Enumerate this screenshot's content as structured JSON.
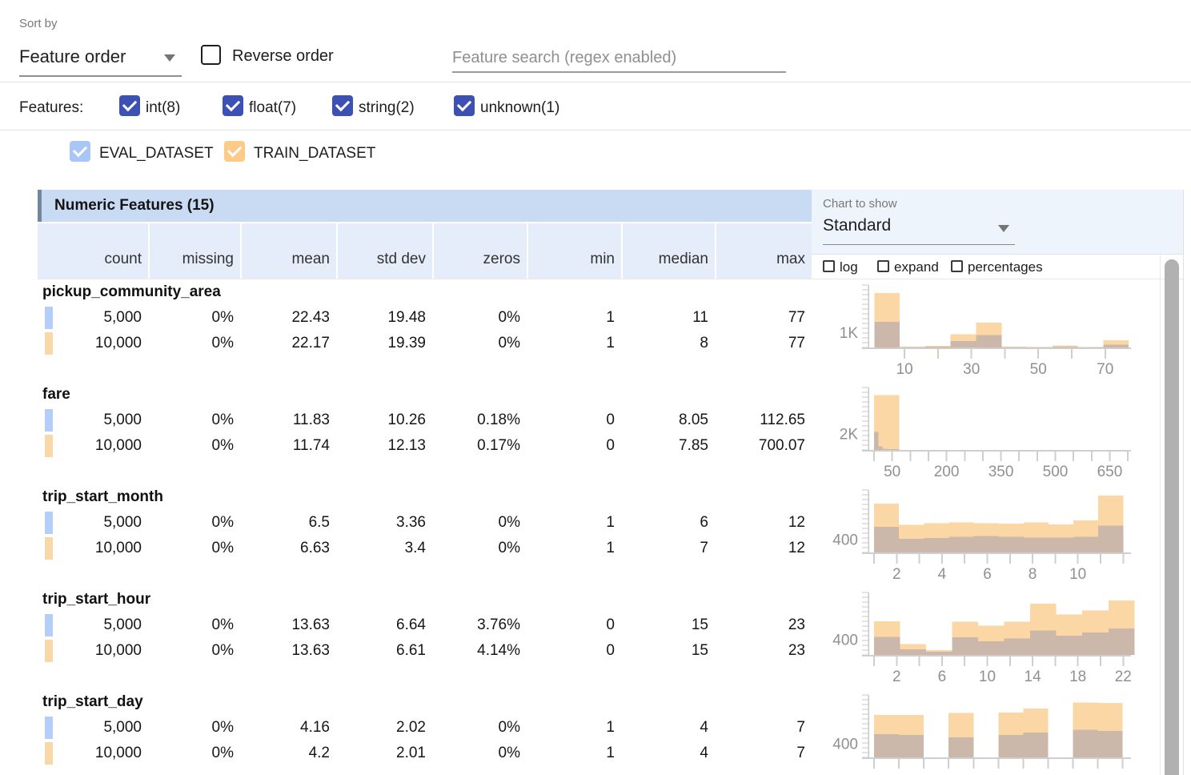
{
  "colors": {
    "accent_checkbox": "#3d51b5",
    "eval_checkbox": "#a8c7f7",
    "train_checkbox": "#fbcb87",
    "eval_marker": "#b5cdf9",
    "train_marker": "#fad7a6",
    "train_bar": "#fad7a4",
    "overlap_bar": "#cbb8aa",
    "header_band": "#c9dbf2",
    "subheader_band": "#e4edf9",
    "header_border": "#70889f",
    "panel_bg": "#eef4fb"
  },
  "toolbar": {
    "sort_by_label": "Sort by",
    "sort_value": "Feature order",
    "reverse_label": "Reverse order",
    "search_placeholder": "Feature search (regex enabled)"
  },
  "features_filter": {
    "label": "Features:",
    "types": [
      {
        "key": "int",
        "label": "int(8)",
        "checked": true
      },
      {
        "key": "float",
        "label": "float(7)",
        "checked": true
      },
      {
        "key": "string",
        "label": "string(2)",
        "checked": true
      },
      {
        "key": "unknown",
        "label": "unknown(1)",
        "checked": true
      }
    ]
  },
  "datasets": [
    {
      "key": "eval",
      "name": "EVAL_DATASET",
      "checked": true,
      "color": "#a8c7f7"
    },
    {
      "key": "train",
      "name": "TRAIN_DATASET",
      "checked": true,
      "color": "#fbcb87"
    }
  ],
  "table": {
    "title": "Numeric Features (15)",
    "columns": [
      "count",
      "missing",
      "mean",
      "std dev",
      "zeros",
      "min",
      "median",
      "max"
    ],
    "chart_controls": {
      "label": "Chart to show",
      "selected": "Standard",
      "options": [
        {
          "key": "log",
          "label": "log",
          "checked": false
        },
        {
          "key": "expand",
          "label": "expand",
          "checked": false
        },
        {
          "key": "percentages",
          "label": "percentages",
          "checked": false
        }
      ]
    },
    "features": [
      {
        "name": "pickup_community_area",
        "rows": [
          {
            "dataset": "EVAL_DATASET",
            "values": [
              "5,000",
              "0%",
              "22.43",
              "19.48",
              "0%",
              "1",
              "11",
              "77"
            ]
          },
          {
            "dataset": "TRAIN_DATASET",
            "values": [
              "10,000",
              "0%",
              "22.17",
              "19.39",
              "0%",
              "1",
              "8",
              "77"
            ]
          }
        ]
      },
      {
        "name": "fare",
        "rows": [
          {
            "dataset": "EVAL_DATASET",
            "values": [
              "5,000",
              "0%",
              "11.83",
              "10.26",
              "0.18%",
              "0",
              "8.05",
              "112.65"
            ]
          },
          {
            "dataset": "TRAIN_DATASET",
            "values": [
              "10,000",
              "0%",
              "11.74",
              "12.13",
              "0.17%",
              "0",
              "7.85",
              "700.07"
            ]
          }
        ]
      },
      {
        "name": "trip_start_month",
        "rows": [
          {
            "dataset": "EVAL_DATASET",
            "values": [
              "5,000",
              "0%",
              "6.5",
              "3.36",
              "0%",
              "1",
              "6",
              "12"
            ]
          },
          {
            "dataset": "TRAIN_DATASET",
            "values": [
              "10,000",
              "0%",
              "6.63",
              "3.4",
              "0%",
              "1",
              "7",
              "12"
            ]
          }
        ]
      },
      {
        "name": "trip_start_hour",
        "rows": [
          {
            "dataset": "EVAL_DATASET",
            "values": [
              "5,000",
              "0%",
              "13.63",
              "6.64",
              "3.76%",
              "0",
              "15",
              "23"
            ]
          },
          {
            "dataset": "TRAIN_DATASET",
            "values": [
              "10,000",
              "0%",
              "13.63",
              "6.61",
              "4.14%",
              "0",
              "15",
              "23"
            ]
          }
        ]
      },
      {
        "name": "trip_start_day",
        "rows": [
          {
            "dataset": "EVAL_DATASET",
            "values": [
              "5,000",
              "0%",
              "4.16",
              "2.02",
              "0%",
              "1",
              "4",
              "7"
            ]
          },
          {
            "dataset": "TRAIN_DATASET",
            "values": [
              "10,000",
              "0%",
              "4.2",
              "2.01",
              "0%",
              "1",
              "4",
              "7"
            ]
          }
        ]
      }
    ]
  },
  "chart_data": [
    {
      "feature": "pickup_community_area",
      "type": "histogram",
      "series": [
        "TRAIN_DATASET",
        "EVAL_DATASET"
      ],
      "x_range": [
        1,
        77
      ],
      "y_ref_label": "1K",
      "y_ref_frac": 0.23,
      "x_ticks": [
        {
          "f": 0.139,
          "label": "10"
        },
        {
          "f": 0.267
        },
        {
          "f": 0.396,
          "label": "30"
        },
        {
          "f": 0.524
        },
        {
          "f": 0.653,
          "label": "50"
        },
        {
          "f": 0.782
        },
        {
          "f": 0.91,
          "label": "70"
        }
      ],
      "train_bars": [
        {
          "x": 0.023,
          "w": 0.0977,
          "h": 0.87,
          "count": 3780
        },
        {
          "x": 0.121,
          "w": 0.0977,
          "h": 0.012,
          "count": 50
        },
        {
          "x": 0.219,
          "w": 0.0977,
          "h": 0.028,
          "count": 120
        },
        {
          "x": 0.316,
          "w": 0.0977,
          "h": 0.21,
          "count": 910
        },
        {
          "x": 0.414,
          "w": 0.0977,
          "h": 0.4,
          "count": 1740
        },
        {
          "x": 0.512,
          "w": 0.0977,
          "h": 0.012,
          "count": 50
        },
        {
          "x": 0.61,
          "w": 0.0977,
          "h": 0.008,
          "count": 35
        },
        {
          "x": 0.707,
          "w": 0.0977,
          "h": 0.035,
          "count": 150
        },
        {
          "x": 0.805,
          "w": 0.0977,
          "h": 0.008,
          "count": 35
        },
        {
          "x": 0.903,
          "w": 0.0977,
          "h": 0.115,
          "count": 500
        }
      ],
      "eval_bars": [
        {
          "x": 0.023,
          "w": 0.0977,
          "h": 0.41,
          "count": 1780
        },
        {
          "x": 0.121,
          "w": 0.0977,
          "h": 0.006,
          "count": 25
        },
        {
          "x": 0.219,
          "w": 0.0977,
          "h": 0.012,
          "count": 50
        },
        {
          "x": 0.316,
          "w": 0.0977,
          "h": 0.105,
          "count": 460
        },
        {
          "x": 0.414,
          "w": 0.0977,
          "h": 0.2,
          "count": 870
        },
        {
          "x": 0.512,
          "w": 0.0977,
          "h": 0.006,
          "count": 25
        },
        {
          "x": 0.61,
          "w": 0.0977,
          "h": 0.004,
          "count": 17
        },
        {
          "x": 0.707,
          "w": 0.0977,
          "h": 0.014,
          "count": 60
        },
        {
          "x": 0.805,
          "w": 0.0977,
          "h": 0.004,
          "count": 17
        },
        {
          "x": 0.903,
          "w": 0.0977,
          "h": 0.048,
          "count": 210
        }
      ]
    },
    {
      "feature": "fare",
      "type": "histogram",
      "series": [
        "TRAIN_DATASET",
        "EVAL_DATASET"
      ],
      "x_range": [
        0,
        700.07
      ],
      "y_ref_label": "2K",
      "y_ref_frac": 0.25,
      "x_ticks": [
        {
          "f": 0.0215
        },
        {
          "f": 0.0912,
          "label": "50"
        },
        {
          "f": 0.1609
        },
        {
          "f": 0.2306
        },
        {
          "f": 0.3003,
          "label": "200"
        },
        {
          "f": 0.37
        },
        {
          "f": 0.4397
        },
        {
          "f": 0.5094,
          "label": "350"
        },
        {
          "f": 0.5791
        },
        {
          "f": 0.6488
        },
        {
          "f": 0.7185,
          "label": "500"
        },
        {
          "f": 0.7882
        },
        {
          "f": 0.8579
        },
        {
          "f": 0.9276,
          "label": "650"
        },
        {
          "f": 0.9973
        }
      ],
      "train_bars": [
        {
          "x": 0.022,
          "w": 0.097,
          "h": 0.88,
          "count": 7040
        }
      ],
      "eval_bars": [
        {
          "x": 0.022,
          "w": 0.0157,
          "h": 0.29,
          "count": 2320
        },
        {
          "x": 0.0377,
          "w": 0.0157,
          "h": 0.055,
          "count": 440
        },
        {
          "x": 0.0534,
          "w": 0.016,
          "h": 0.02,
          "count": 160
        },
        {
          "x": 0.0694,
          "w": 0.0496,
          "h": 0.01,
          "count": 80
        }
      ]
    },
    {
      "feature": "trip_start_month",
      "type": "histogram",
      "series": [
        "TRAIN_DATASET",
        "EVAL_DATASET"
      ],
      "x_range": [
        1,
        12
      ],
      "y_ref_label": "400",
      "y_ref_frac": 0.2,
      "x_ticks": [
        {
          "f": 0.0215
        },
        {
          "f": 0.1086,
          "label": "2"
        },
        {
          "f": 0.1957
        },
        {
          "f": 0.2827,
          "label": "4"
        },
        {
          "f": 0.3698
        },
        {
          "f": 0.4569,
          "label": "6"
        },
        {
          "f": 0.544
        },
        {
          "f": 0.631,
          "label": "8"
        },
        {
          "f": 0.7181
        },
        {
          "f": 0.8052,
          "label": "10"
        },
        {
          "f": 0.8923
        },
        {
          "f": 0.9793
        }
      ],
      "train_bars": [
        {
          "x": 0.0215,
          "w": 0.0958,
          "h": 0.78,
          "count": 1560
        },
        {
          "x": 0.1173,
          "w": 0.0958,
          "h": 0.44,
          "count": 880
        },
        {
          "x": 0.2131,
          "w": 0.0958,
          "h": 0.47,
          "count": 940
        },
        {
          "x": 0.3089,
          "w": 0.0958,
          "h": 0.48,
          "count": 960
        },
        {
          "x": 0.4047,
          "w": 0.0958,
          "h": 0.47,
          "count": 940
        },
        {
          "x": 0.5005,
          "w": 0.0958,
          "h": 0.46,
          "count": 920
        },
        {
          "x": 0.5963,
          "w": 0.0958,
          "h": 0.48,
          "count": 960
        },
        {
          "x": 0.6921,
          "w": 0.0958,
          "h": 0.45,
          "count": 900
        },
        {
          "x": 0.7879,
          "w": 0.0958,
          "h": 0.51,
          "count": 1020
        },
        {
          "x": 0.8837,
          "w": 0.0958,
          "h": 0.91,
          "count": 1820
        }
      ],
      "eval_bars": [
        {
          "x": 0.0215,
          "w": 0.0958,
          "h": 0.41,
          "count": 820
        },
        {
          "x": 0.1173,
          "w": 0.0958,
          "h": 0.22,
          "count": 440
        },
        {
          "x": 0.2131,
          "w": 0.0958,
          "h": 0.23,
          "count": 460
        },
        {
          "x": 0.3089,
          "w": 0.0958,
          "h": 0.25,
          "count": 500
        },
        {
          "x": 0.4047,
          "w": 0.0958,
          "h": 0.26,
          "count": 520
        },
        {
          "x": 0.5005,
          "w": 0.0958,
          "h": 0.25,
          "count": 500
        },
        {
          "x": 0.5963,
          "w": 0.0958,
          "h": 0.24,
          "count": 480
        },
        {
          "x": 0.6921,
          "w": 0.0958,
          "h": 0.24,
          "count": 480
        },
        {
          "x": 0.7879,
          "w": 0.0958,
          "h": 0.25,
          "count": 500
        },
        {
          "x": 0.8837,
          "w": 0.0958,
          "h": 0.43,
          "count": 860
        }
      ]
    },
    {
      "feature": "trip_start_hour",
      "type": "histogram",
      "series": [
        "TRAIN_DATASET",
        "EVAL_DATASET"
      ],
      "x_range": [
        0,
        23
      ],
      "y_ref_label": "400",
      "y_ref_frac": 0.24,
      "x_ticks": [
        {
          "f": 0.0215
        },
        {
          "f": 0.1086,
          "label": "2"
        },
        {
          "f": 0.1957
        },
        {
          "f": 0.2827,
          "label": "6"
        },
        {
          "f": 0.3698
        },
        {
          "f": 0.4569,
          "label": "10"
        },
        {
          "f": 0.544
        },
        {
          "f": 0.631,
          "label": "14"
        },
        {
          "f": 0.7181
        },
        {
          "f": 0.8052,
          "label": "18"
        },
        {
          "f": 0.8923
        },
        {
          "f": 0.9793,
          "label": "22"
        }
      ],
      "train_bars": [
        {
          "x": 0.0215,
          "w": 0.1001,
          "h": 0.54,
          "count": 900
        },
        {
          "x": 0.1216,
          "w": 0.1001,
          "h": 0.17,
          "count": 285
        },
        {
          "x": 0.2217,
          "w": 0.1001,
          "h": 0.08,
          "count": 135
        },
        {
          "x": 0.3218,
          "w": 0.1001,
          "h": 0.53,
          "count": 885
        },
        {
          "x": 0.4219,
          "w": 0.1001,
          "h": 0.47,
          "count": 785
        },
        {
          "x": 0.522,
          "w": 0.1001,
          "h": 0.53,
          "count": 885
        },
        {
          "x": 0.6221,
          "w": 0.1001,
          "h": 0.82,
          "count": 1365
        },
        {
          "x": 0.7222,
          "w": 0.1001,
          "h": 0.65,
          "count": 1085
        },
        {
          "x": 0.8223,
          "w": 0.1001,
          "h": 0.71,
          "count": 1185
        },
        {
          "x": 0.9224,
          "w": 0.1001,
          "h": 0.87,
          "count": 1450
        }
      ],
      "eval_bars": [
        {
          "x": 0.0215,
          "w": 0.1001,
          "h": 0.29,
          "count": 485
        },
        {
          "x": 0.1216,
          "w": 0.1001,
          "h": 0.09,
          "count": 150
        },
        {
          "x": 0.2217,
          "w": 0.1001,
          "h": 0.05,
          "count": 85
        },
        {
          "x": 0.3218,
          "w": 0.1001,
          "h": 0.28,
          "count": 465
        },
        {
          "x": 0.4219,
          "w": 0.1001,
          "h": 0.22,
          "count": 365
        },
        {
          "x": 0.522,
          "w": 0.1001,
          "h": 0.26,
          "count": 435
        },
        {
          "x": 0.6221,
          "w": 0.1001,
          "h": 0.39,
          "count": 650
        },
        {
          "x": 0.7222,
          "w": 0.1001,
          "h": 0.31,
          "count": 515
        },
        {
          "x": 0.8223,
          "w": 0.1001,
          "h": 0.36,
          "count": 600
        },
        {
          "x": 0.9224,
          "w": 0.1001,
          "h": 0.42,
          "count": 700
        }
      ]
    },
    {
      "feature": "trip_start_day",
      "type": "histogram",
      "series": [
        "TRAIN_DATASET",
        "EVAL_DATASET"
      ],
      "x_range": [
        1,
        7
      ],
      "y_ref_label": "400",
      "y_ref_frac": 0.21,
      "x_ticks": [
        {
          "f": 0.0215
        },
        {
          "f": 0.1171
        },
        {
          "f": 0.2127
        },
        {
          "f": 0.3083
        },
        {
          "f": 0.4039
        },
        {
          "f": 0.4995
        },
        {
          "f": 0.5951
        },
        {
          "f": 0.6907
        },
        {
          "f": 0.7863
        },
        {
          "f": 0.8819
        },
        {
          "f": 0.9775
        }
      ],
      "train_bars": [
        {
          "x": 0.0215,
          "w": 0.0956,
          "h": 0.68,
          "count": 1295
        },
        {
          "x": 0.1171,
          "w": 0.0956,
          "h": 0.68,
          "count": 1295
        },
        {
          "x": 0.2127,
          "w": 0.0956,
          "h": 0,
          "count": 0
        },
        {
          "x": 0.3083,
          "w": 0.0956,
          "h": 0.71,
          "count": 1350
        },
        {
          "x": 0.4039,
          "w": 0.0956,
          "h": 0,
          "count": 0
        },
        {
          "x": 0.4995,
          "w": 0.0956,
          "h": 0.72,
          "count": 1370
        },
        {
          "x": 0.5951,
          "w": 0.0956,
          "h": 0.78,
          "count": 1485
        },
        {
          "x": 0.6907,
          "w": 0.0956,
          "h": 0,
          "count": 0
        },
        {
          "x": 0.7863,
          "w": 0.0956,
          "h": 0.88,
          "count": 1675
        },
        {
          "x": 0.8819,
          "w": 0.0956,
          "h": 0.87,
          "count": 1655
        }
      ],
      "eval_bars": [
        {
          "x": 0.0215,
          "w": 0.0956,
          "h": 0.37,
          "count": 705
        },
        {
          "x": 0.1171,
          "w": 0.0956,
          "h": 0.36,
          "count": 685
        },
        {
          "x": 0.2127,
          "w": 0.0956,
          "h": 0,
          "count": 0
        },
        {
          "x": 0.3083,
          "w": 0.0956,
          "h": 0.32,
          "count": 610
        },
        {
          "x": 0.4039,
          "w": 0.0956,
          "h": 0,
          "count": 0
        },
        {
          "x": 0.4995,
          "w": 0.0956,
          "h": 0.36,
          "count": 685
        },
        {
          "x": 0.5951,
          "w": 0.0956,
          "h": 0.4,
          "count": 760
        },
        {
          "x": 0.6907,
          "w": 0.0956,
          "h": 0,
          "count": 0
        },
        {
          "x": 0.7863,
          "w": 0.0956,
          "h": 0.44,
          "count": 840
        },
        {
          "x": 0.8819,
          "w": 0.0956,
          "h": 0.42,
          "count": 800
        }
      ]
    }
  ]
}
